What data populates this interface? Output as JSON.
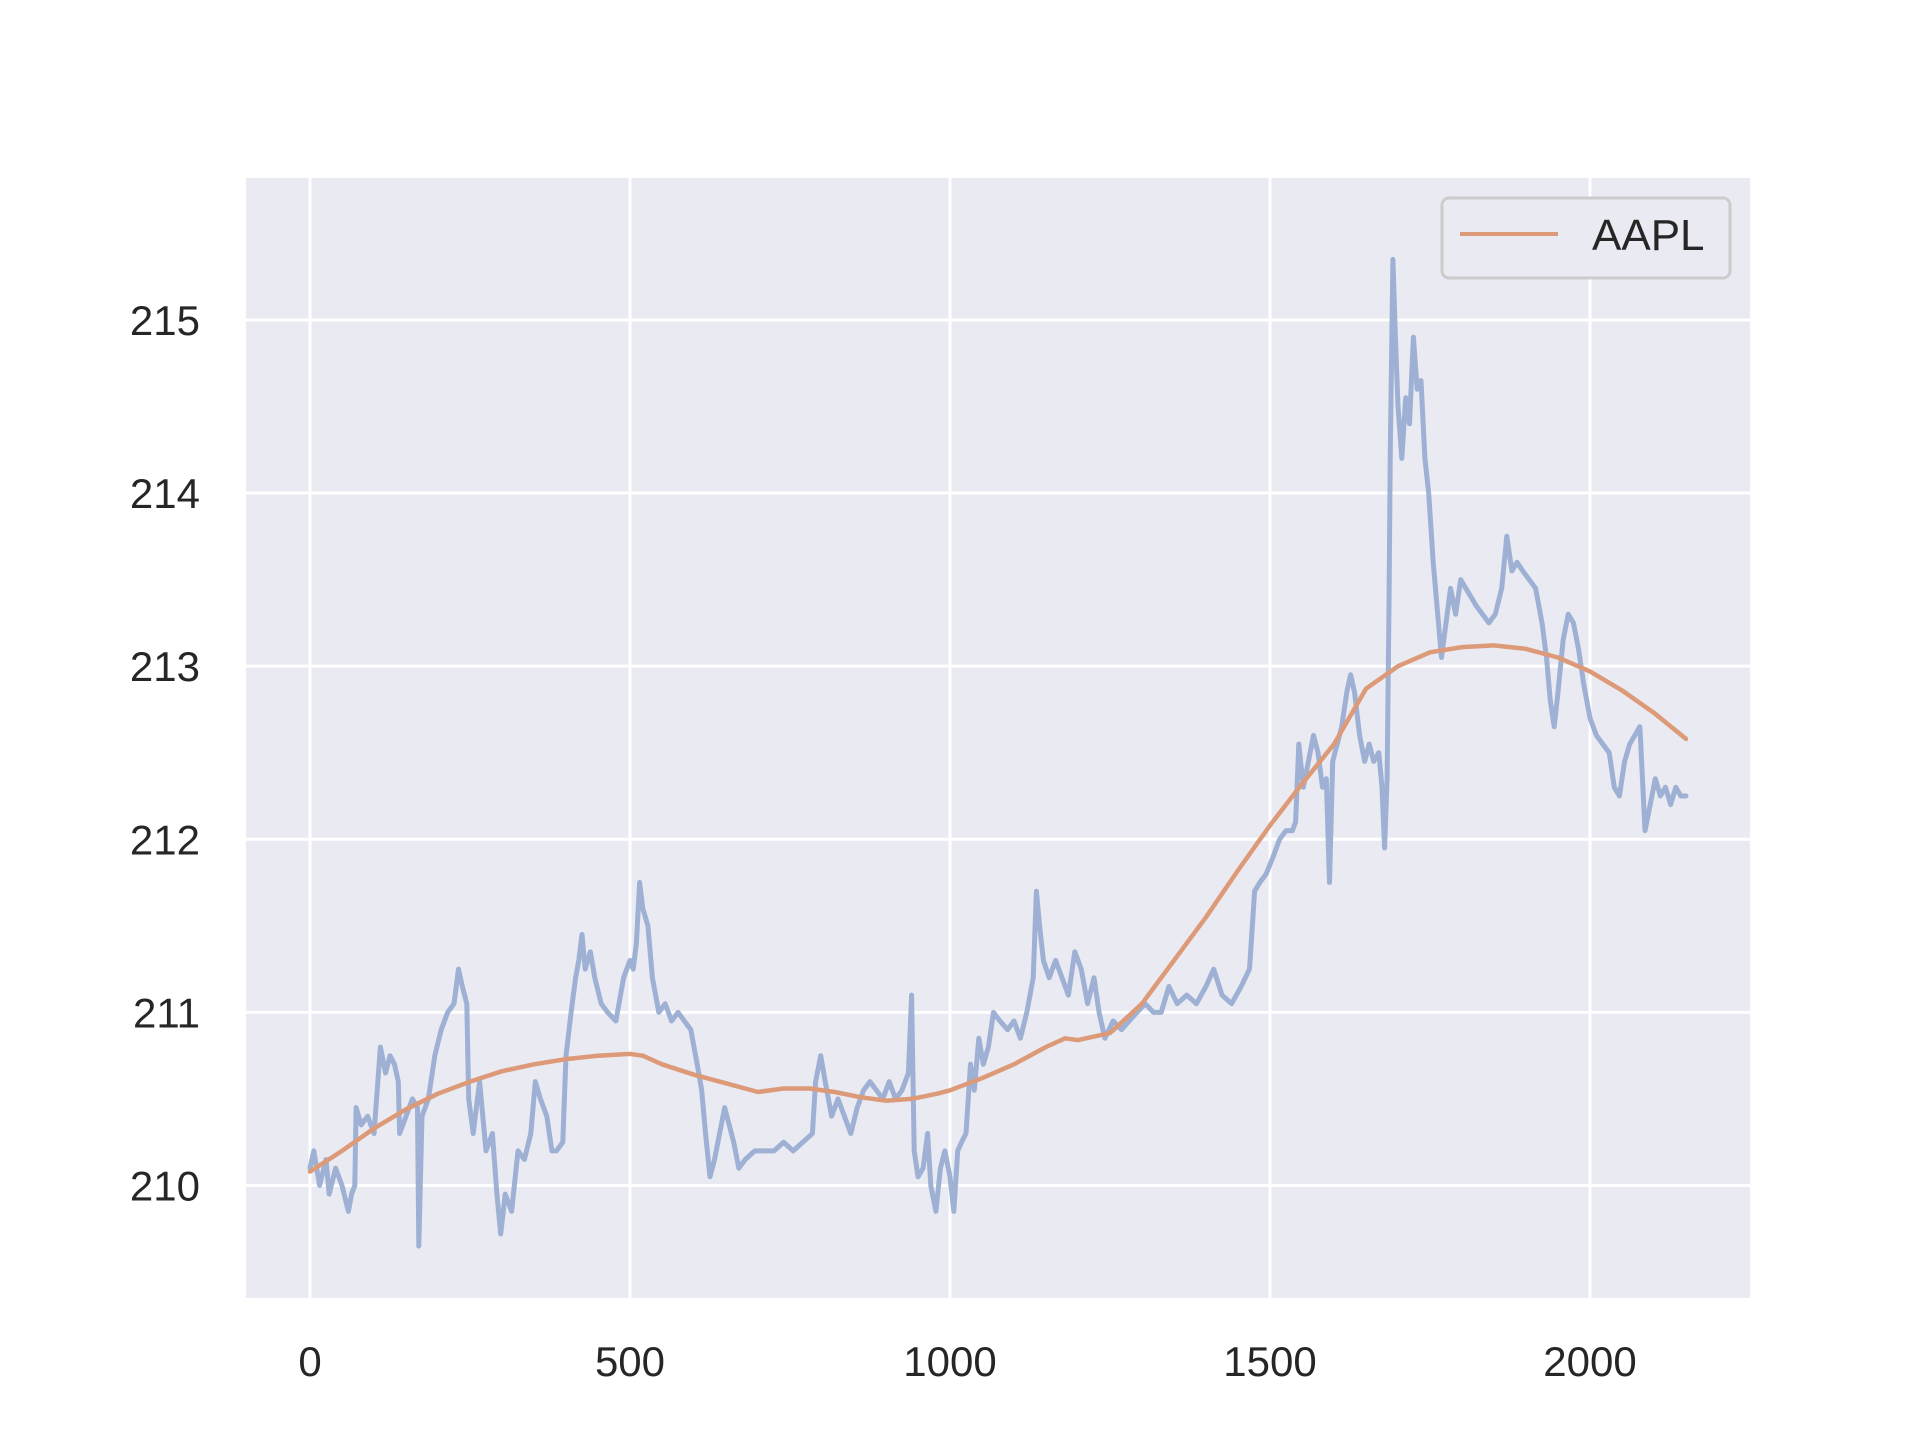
{
  "chart_data": {
    "type": "line",
    "title": "",
    "xlabel": "",
    "ylabel": "",
    "xlim": [
      -100,
      2250
    ],
    "ylim": [
      209.35,
      215.82
    ],
    "xticks": [
      0,
      500,
      1000,
      1500,
      2000
    ],
    "yticks": [
      210,
      211,
      212,
      213,
      214,
      215
    ],
    "grid": true,
    "legend": {
      "location": "upper right",
      "entries": [
        "AAPL"
      ]
    },
    "colors": {
      "raw": "#9aaed2",
      "smooth": "#dd9a78",
      "background": "#eaeaf2",
      "grid": "#ffffff",
      "text": "#262626"
    },
    "series": [
      {
        "style": "raw",
        "points": [
          [
            0,
            210.1
          ],
          [
            6,
            210.2
          ],
          [
            15,
            210.0
          ],
          [
            25,
            210.15
          ],
          [
            30,
            209.95
          ],
          [
            40,
            210.1
          ],
          [
            50,
            210.0
          ],
          [
            60,
            209.85
          ],
          [
            65,
            209.95
          ],
          [
            70,
            210.0
          ],
          [
            72,
            210.45
          ],
          [
            80,
            210.35
          ],
          [
            90,
            210.4
          ],
          [
            100,
            210.3
          ],
          [
            105,
            210.55
          ],
          [
            110,
            210.8
          ],
          [
            118,
            210.65
          ],
          [
            125,
            210.75
          ],
          [
            132,
            210.7
          ],
          [
            138,
            210.6
          ],
          [
            140,
            210.3
          ],
          [
            150,
            210.4
          ],
          [
            160,
            210.5
          ],
          [
            168,
            210.45
          ],
          [
            170,
            209.65
          ],
          [
            175,
            210.4
          ],
          [
            185,
            210.5
          ],
          [
            195,
            210.75
          ],
          [
            205,
            210.9
          ],
          [
            215,
            211.0
          ],
          [
            225,
            211.05
          ],
          [
            232,
            211.25
          ],
          [
            238,
            211.15
          ],
          [
            245,
            211.05
          ],
          [
            248,
            210.5
          ],
          [
            255,
            210.3
          ],
          [
            265,
            210.6
          ],
          [
            275,
            210.2
          ],
          [
            285,
            210.3
          ],
          [
            292,
            209.95
          ],
          [
            298,
            209.72
          ],
          [
            305,
            209.95
          ],
          [
            315,
            209.85
          ],
          [
            325,
            210.2
          ],
          [
            335,
            210.15
          ],
          [
            345,
            210.3
          ],
          [
            352,
            210.6
          ],
          [
            360,
            210.5
          ],
          [
            370,
            210.4
          ],
          [
            378,
            210.2
          ],
          [
            385,
            210.2
          ],
          [
            395,
            210.25
          ],
          [
            400,
            210.75
          ],
          [
            408,
            211.0
          ],
          [
            415,
            211.2
          ],
          [
            420,
            211.3
          ],
          [
            425,
            211.45
          ],
          [
            430,
            211.25
          ],
          [
            438,
            211.35
          ],
          [
            445,
            211.2
          ],
          [
            455,
            211.05
          ],
          [
            465,
            211.0
          ],
          [
            478,
            210.95
          ],
          [
            490,
            211.2
          ],
          [
            500,
            211.3
          ],
          [
            505,
            211.25
          ],
          [
            510,
            211.4
          ],
          [
            515,
            211.75
          ],
          [
            520,
            211.6
          ],
          [
            528,
            211.5
          ],
          [
            535,
            211.2
          ],
          [
            545,
            211.0
          ],
          [
            555,
            211.05
          ],
          [
            565,
            210.95
          ],
          [
            575,
            211.0
          ],
          [
            585,
            210.95
          ],
          [
            595,
            210.9
          ],
          [
            605,
            210.7
          ],
          [
            612,
            210.55
          ],
          [
            618,
            210.3
          ],
          [
            625,
            210.05
          ],
          [
            632,
            210.15
          ],
          [
            640,
            210.3
          ],
          [
            648,
            210.45
          ],
          [
            655,
            210.35
          ],
          [
            662,
            210.25
          ],
          [
            670,
            210.1
          ],
          [
            680,
            210.15
          ],
          [
            695,
            210.2
          ],
          [
            710,
            210.2
          ],
          [
            725,
            210.2
          ],
          [
            740,
            210.25
          ],
          [
            755,
            210.2
          ],
          [
            770,
            210.25
          ],
          [
            785,
            210.3
          ],
          [
            790,
            210.6
          ],
          [
            798,
            210.75
          ],
          [
            805,
            210.6
          ],
          [
            815,
            210.4
          ],
          [
            825,
            210.5
          ],
          [
            835,
            210.4
          ],
          [
            845,
            210.3
          ],
          [
            855,
            210.45
          ],
          [
            865,
            210.55
          ],
          [
            875,
            210.6
          ],
          [
            885,
            210.55
          ],
          [
            895,
            210.5
          ],
          [
            905,
            210.6
          ],
          [
            915,
            210.5
          ],
          [
            925,
            210.55
          ],
          [
            935,
            210.65
          ],
          [
            940,
            211.1
          ],
          [
            944,
            210.2
          ],
          [
            950,
            210.05
          ],
          [
            958,
            210.1
          ],
          [
            965,
            210.3
          ],
          [
            970,
            210.0
          ],
          [
            978,
            209.85
          ],
          [
            985,
            210.1
          ],
          [
            992,
            210.2
          ],
          [
            1000,
            210.05
          ],
          [
            1006,
            209.85
          ],
          [
            1012,
            210.2
          ],
          [
            1018,
            210.25
          ],
          [
            1025,
            210.3
          ],
          [
            1032,
            210.7
          ],
          [
            1038,
            210.55
          ],
          [
            1045,
            210.85
          ],
          [
            1052,
            210.7
          ],
          [
            1060,
            210.8
          ],
          [
            1068,
            211.0
          ],
          [
            1078,
            210.95
          ],
          [
            1090,
            210.9
          ],
          [
            1100,
            210.95
          ],
          [
            1110,
            210.85
          ],
          [
            1120,
            211.0
          ],
          [
            1130,
            211.2
          ],
          [
            1135,
            211.7
          ],
          [
            1140,
            211.5
          ],
          [
            1146,
            211.3
          ],
          [
            1155,
            211.2
          ],
          [
            1165,
            211.3
          ],
          [
            1175,
            211.2
          ],
          [
            1185,
            211.1
          ],
          [
            1195,
            211.35
          ],
          [
            1205,
            211.25
          ],
          [
            1215,
            211.05
          ],
          [
            1225,
            211.2
          ],
          [
            1233,
            211.0
          ],
          [
            1242,
            210.85
          ],
          [
            1255,
            210.95
          ],
          [
            1268,
            210.9
          ],
          [
            1280,
            210.95
          ],
          [
            1292,
            211.0
          ],
          [
            1305,
            211.05
          ],
          [
            1318,
            211.0
          ],
          [
            1330,
            211.0
          ],
          [
            1342,
            211.15
          ],
          [
            1355,
            211.05
          ],
          [
            1370,
            211.1
          ],
          [
            1385,
            211.05
          ],
          [
            1400,
            211.15
          ],
          [
            1412,
            211.25
          ],
          [
            1425,
            211.1
          ],
          [
            1440,
            211.05
          ],
          [
            1455,
            211.15
          ],
          [
            1468,
            211.25
          ],
          [
            1476,
            211.7
          ],
          [
            1484,
            211.75
          ],
          [
            1494,
            211.8
          ],
          [
            1505,
            211.9
          ],
          [
            1515,
            212.0
          ],
          [
            1525,
            212.05
          ],
          [
            1535,
            212.05
          ],
          [
            1540,
            212.1
          ],
          [
            1545,
            212.55
          ],
          [
            1552,
            212.3
          ],
          [
            1560,
            212.45
          ],
          [
            1568,
            212.6
          ],
          [
            1575,
            212.5
          ],
          [
            1582,
            212.3
          ],
          [
            1588,
            212.35
          ],
          [
            1593,
            211.75
          ],
          [
            1598,
            212.45
          ],
          [
            1605,
            212.55
          ],
          [
            1612,
            212.65
          ],
          [
            1620,
            212.85
          ],
          [
            1626,
            212.95
          ],
          [
            1632,
            212.85
          ],
          [
            1640,
            212.6
          ],
          [
            1648,
            212.45
          ],
          [
            1655,
            212.55
          ],
          [
            1662,
            212.45
          ],
          [
            1670,
            212.5
          ],
          [
            1675,
            212.3
          ],
          [
            1679,
            211.95
          ],
          [
            1683,
            212.35
          ],
          [
            1686,
            213.35
          ],
          [
            1688,
            214.25
          ],
          [
            1692,
            215.35
          ],
          [
            1696,
            214.9
          ],
          [
            1700,
            214.5
          ],
          [
            1706,
            214.2
          ],
          [
            1712,
            214.55
          ],
          [
            1718,
            214.4
          ],
          [
            1724,
            214.9
          ],
          [
            1730,
            214.6
          ],
          [
            1736,
            214.65
          ],
          [
            1742,
            214.2
          ],
          [
            1748,
            214.0
          ],
          [
            1755,
            213.6
          ],
          [
            1762,
            213.3
          ],
          [
            1768,
            213.05
          ],
          [
            1775,
            213.25
          ],
          [
            1782,
            213.45
          ],
          [
            1790,
            213.3
          ],
          [
            1798,
            213.5
          ],
          [
            1806,
            213.45
          ],
          [
            1814,
            213.4
          ],
          [
            1822,
            213.35
          ],
          [
            1832,
            213.3
          ],
          [
            1842,
            213.25
          ],
          [
            1852,
            213.3
          ],
          [
            1862,
            213.45
          ],
          [
            1870,
            213.75
          ],
          [
            1878,
            213.55
          ],
          [
            1886,
            213.6
          ],
          [
            1895,
            213.55
          ],
          [
            1905,
            213.5
          ],
          [
            1915,
            213.45
          ],
          [
            1925,
            213.25
          ],
          [
            1932,
            213.05
          ],
          [
            1938,
            212.8
          ],
          [
            1944,
            212.65
          ],
          [
            1950,
            212.85
          ],
          [
            1958,
            213.15
          ],
          [
            1966,
            213.3
          ],
          [
            1974,
            213.25
          ],
          [
            1982,
            213.1
          ],
          [
            1990,
            212.9
          ],
          [
            2000,
            212.7
          ],
          [
            2010,
            212.6
          ],
          [
            2020,
            212.55
          ],
          [
            2030,
            212.5
          ],
          [
            2038,
            212.3
          ],
          [
            2046,
            212.25
          ],
          [
            2054,
            212.45
          ],
          [
            2062,
            212.55
          ],
          [
            2070,
            212.6
          ],
          [
            2078,
            212.65
          ],
          [
            2086,
            212.05
          ],
          [
            2094,
            212.2
          ],
          [
            2102,
            212.35
          ],
          [
            2110,
            212.25
          ],
          [
            2118,
            212.3
          ],
          [
            2126,
            212.2
          ],
          [
            2134,
            212.3
          ],
          [
            2142,
            212.25
          ],
          [
            2150,
            212.25
          ]
        ]
      },
      {
        "name": "AAPL",
        "style": "smooth",
        "points": [
          [
            0,
            210.08
          ],
          [
            50,
            210.2
          ],
          [
            100,
            210.33
          ],
          [
            150,
            210.44
          ],
          [
            200,
            210.53
          ],
          [
            250,
            210.6
          ],
          [
            300,
            210.66
          ],
          [
            350,
            210.7
          ],
          [
            400,
            210.73
          ],
          [
            450,
            210.75
          ],
          [
            500,
            210.76
          ],
          [
            520,
            210.75
          ],
          [
            550,
            210.7
          ],
          [
            600,
            210.64
          ],
          [
            650,
            210.59
          ],
          [
            700,
            210.54
          ],
          [
            740,
            210.56
          ],
          [
            780,
            210.56
          ],
          [
            820,
            210.54
          ],
          [
            860,
            210.51
          ],
          [
            900,
            210.49
          ],
          [
            940,
            210.5
          ],
          [
            980,
            210.53
          ],
          [
            1000,
            210.55
          ],
          [
            1050,
            210.62
          ],
          [
            1100,
            210.7
          ],
          [
            1150,
            210.8
          ],
          [
            1180,
            210.85
          ],
          [
            1200,
            210.84
          ],
          [
            1250,
            210.88
          ],
          [
            1300,
            211.05
          ],
          [
            1350,
            211.3
          ],
          [
            1400,
            211.55
          ],
          [
            1450,
            211.82
          ],
          [
            1500,
            212.08
          ],
          [
            1550,
            212.32
          ],
          [
            1600,
            212.55
          ],
          [
            1650,
            212.87
          ],
          [
            1700,
            213.0
          ],
          [
            1750,
            213.08
          ],
          [
            1800,
            213.11
          ],
          [
            1850,
            213.12
          ],
          [
            1900,
            213.1
          ],
          [
            1950,
            213.05
          ],
          [
            2000,
            212.97
          ],
          [
            2050,
            212.86
          ],
          [
            2100,
            212.73
          ],
          [
            2150,
            212.58
          ]
        ]
      }
    ]
  }
}
